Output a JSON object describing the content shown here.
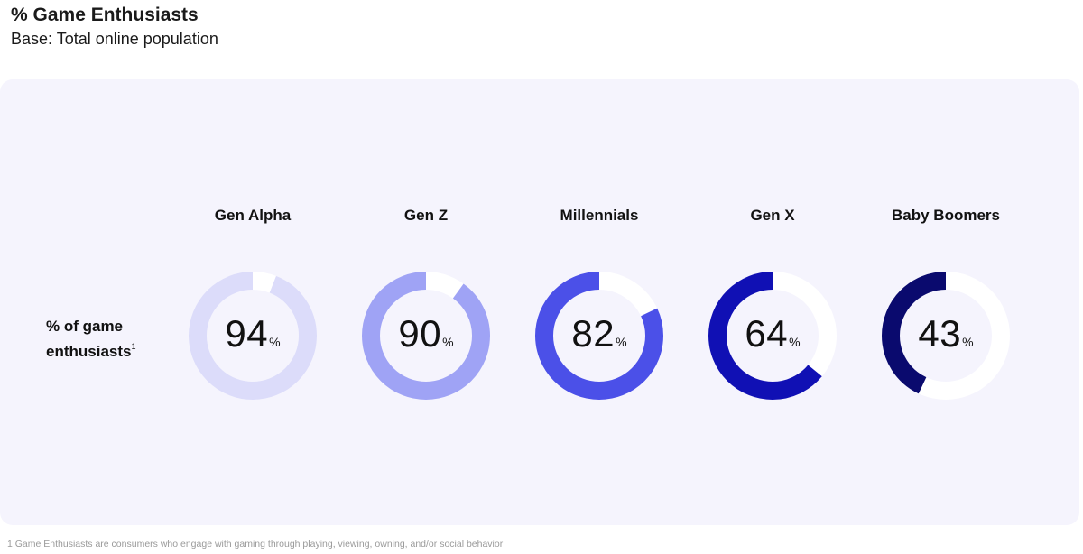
{
  "header": {
    "title": "% Game Enthusiasts",
    "subtitle": "Base: Total online population"
  },
  "row_label": {
    "line1": "% of game",
    "line2": "enthusiasts",
    "footnote_marker": "1"
  },
  "footnote": "1 Game Enthusiasts are consumers who engage with gaming through playing, viewing, owning, and/or social behavior",
  "chart_data": {
    "type": "pie",
    "subtype": "donut",
    "title": "% Game Enthusiasts",
    "subtitle": "Base: Total online population",
    "unit": "%",
    "categories": [
      "Gen Alpha",
      "Gen Z",
      "Millennials",
      "Gen X",
      "Baby Boomers"
    ],
    "values": [
      94,
      90,
      82,
      64,
      43
    ],
    "colors": [
      "#dcdcfa",
      "#9fa3f5",
      "#4b50e8",
      "#1010b4",
      "#0a0a6e"
    ],
    "track_color": "#ffffff"
  }
}
